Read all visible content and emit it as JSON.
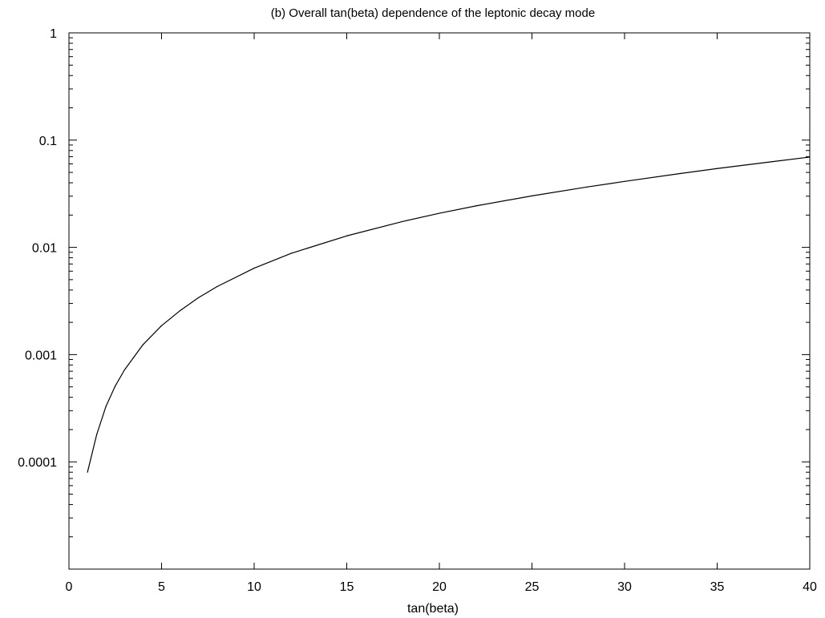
{
  "chart_data": {
    "type": "line",
    "title": "(b) Overall tan(beta) dependence of the leptonic decay mode",
    "xlabel": "tan(beta)",
    "ylabel": "",
    "xlim": [
      0,
      40
    ],
    "ylim": [
      1e-05,
      1
    ],
    "y_scale": "log",
    "grid": false,
    "legend": "none",
    "x_ticks": [
      0,
      5,
      10,
      15,
      20,
      25,
      30,
      35,
      40
    ],
    "x_tick_labels": [
      "0",
      "5",
      "10",
      "15",
      "20",
      "25",
      "30",
      "35",
      "40"
    ],
    "y_ticks": [
      0.0001,
      0.001,
      0.01,
      0.1,
      1
    ],
    "y_tick_labels": [
      "0.0001",
      "0.001",
      "0.01",
      "0.1",
      "1"
    ],
    "series": [
      {
        "color": "#000000",
        "x": [
          1,
          1.5,
          2,
          2.5,
          3,
          4,
          5,
          6,
          7,
          8,
          10,
          12,
          15,
          18,
          20,
          22,
          25,
          28,
          30,
          33,
          35,
          38,
          40
        ],
        "y": [
          8e-05,
          0.00018,
          0.00033,
          0.00051,
          0.00072,
          0.00124,
          0.00186,
          0.00257,
          0.0034,
          0.00431,
          0.0064,
          0.0088,
          0.0128,
          0.0174,
          0.0208,
          0.0244,
          0.0302,
          0.0366,
          0.0412,
          0.0488,
          0.0543,
          0.063,
          0.0695
        ]
      }
    ]
  }
}
